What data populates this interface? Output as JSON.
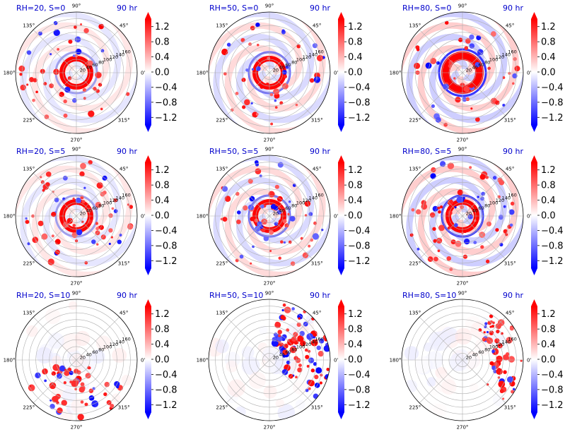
{
  "chart_data": {
    "type": "heatmap",
    "projection": "polar",
    "layout": {
      "rows": 3,
      "cols": 3
    },
    "colormap": "bwr",
    "color_range": [
      -1.4,
      1.4
    ],
    "colorbar_ticks": [
      "1.2",
      "0.8",
      "0.4",
      "0.0",
      "−0.4",
      "−0.8",
      "−1.2"
    ],
    "colorbar_extend": "both",
    "angle_tick_labels": [
      "90°",
      "45°",
      "0°",
      "315°",
      "270°",
      "225°",
      "180°",
      "135°"
    ],
    "radial_tick_labels": [
      "20",
      "40",
      "60",
      "80",
      "100",
      "120",
      "140",
      "160"
    ],
    "radial_range": [
      0,
      180
    ],
    "grid": true,
    "panels": [
      {
        "title": "RH=20, S=0",
        "time": "90 hr",
        "pattern": "spiral-weak"
      },
      {
        "title": "RH=50, S=0",
        "time": "90 hr",
        "pattern": "spiral-mid"
      },
      {
        "title": "RH=80, S=0",
        "time": "90 hr",
        "pattern": "spiral-strong"
      },
      {
        "title": "RH=20, S=5",
        "time": "90 hr",
        "pattern": "shear-weak"
      },
      {
        "title": "RH=50, S=5",
        "time": "90 hr",
        "pattern": "shear-mid"
      },
      {
        "title": "RH=80, S=5",
        "time": "90 hr",
        "pattern": "shear-strong"
      },
      {
        "title": "RH=20, S=10",
        "time": "90 hr",
        "pattern": "strong-shear-sw"
      },
      {
        "title": "RH=50, S=10",
        "time": "90 hr",
        "pattern": "strong-shear-ne"
      },
      {
        "title": "RH=80, S=10",
        "time": "90 hr",
        "pattern": "strong-shear-e"
      }
    ]
  }
}
